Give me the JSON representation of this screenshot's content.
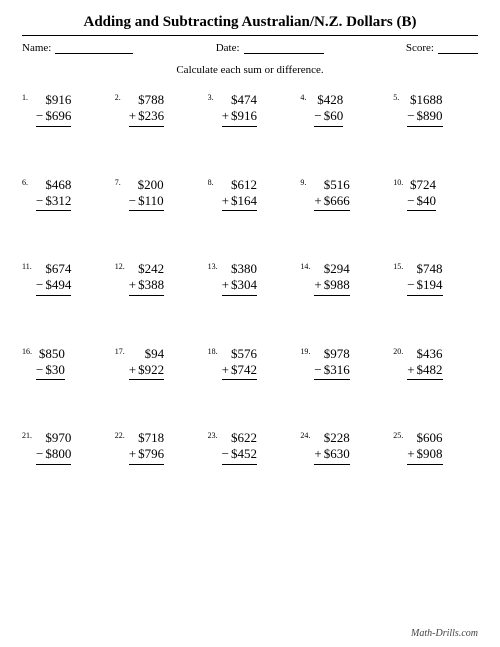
{
  "title": "Adding and Subtracting Australian/N.Z. Dollars (B)",
  "labels": {
    "name": "Name:",
    "date": "Date:",
    "score": "Score:"
  },
  "instruction": "Calculate each sum or difference.",
  "footer": "Math-Drills.com",
  "currency": "$",
  "problems": [
    {
      "n": "1.",
      "a": 916,
      "b": 696,
      "op": "−"
    },
    {
      "n": "2.",
      "a": 788,
      "b": 236,
      "op": "+"
    },
    {
      "n": "3.",
      "a": 474,
      "b": 916,
      "op": "+"
    },
    {
      "n": "4.",
      "a": 428,
      "b": 60,
      "op": "−"
    },
    {
      "n": "5.",
      "a": 1688,
      "b": 890,
      "op": "−"
    },
    {
      "n": "6.",
      "a": 468,
      "b": 312,
      "op": "−"
    },
    {
      "n": "7.",
      "a": 200,
      "b": 110,
      "op": "−"
    },
    {
      "n": "8.",
      "a": 612,
      "b": 164,
      "op": "+"
    },
    {
      "n": "9.",
      "a": 516,
      "b": 666,
      "op": "+"
    },
    {
      "n": "10.",
      "a": 724,
      "b": 40,
      "op": "−"
    },
    {
      "n": "11.",
      "a": 674,
      "b": 494,
      "op": "−"
    },
    {
      "n": "12.",
      "a": 242,
      "b": 388,
      "op": "+"
    },
    {
      "n": "13.",
      "a": 380,
      "b": 304,
      "op": "+"
    },
    {
      "n": "14.",
      "a": 294,
      "b": 988,
      "op": "+"
    },
    {
      "n": "15.",
      "a": 748,
      "b": 194,
      "op": "−"
    },
    {
      "n": "16.",
      "a": 850,
      "b": 30,
      "op": "−"
    },
    {
      "n": "17.",
      "a": 94,
      "b": 922,
      "op": "+"
    },
    {
      "n": "18.",
      "a": 576,
      "b": 742,
      "op": "+"
    },
    {
      "n": "19.",
      "a": 978,
      "b": 316,
      "op": "−"
    },
    {
      "n": "20.",
      "a": 436,
      "b": 482,
      "op": "+"
    },
    {
      "n": "21.",
      "a": 970,
      "b": 800,
      "op": "−"
    },
    {
      "n": "22.",
      "a": 718,
      "b": 796,
      "op": "+"
    },
    {
      "n": "23.",
      "a": 622,
      "b": 452,
      "op": "−"
    },
    {
      "n": "24.",
      "a": 228,
      "b": 630,
      "op": "+"
    },
    {
      "n": "25.",
      "a": 606,
      "b": 908,
      "op": "+"
    }
  ],
  "style": {
    "page_bg": "#ffffff",
    "text_color": "#000000",
    "title_fontsize": 15,
    "body_fontsize": 13,
    "num_fontsize": 8,
    "font_family": "Times New Roman"
  }
}
